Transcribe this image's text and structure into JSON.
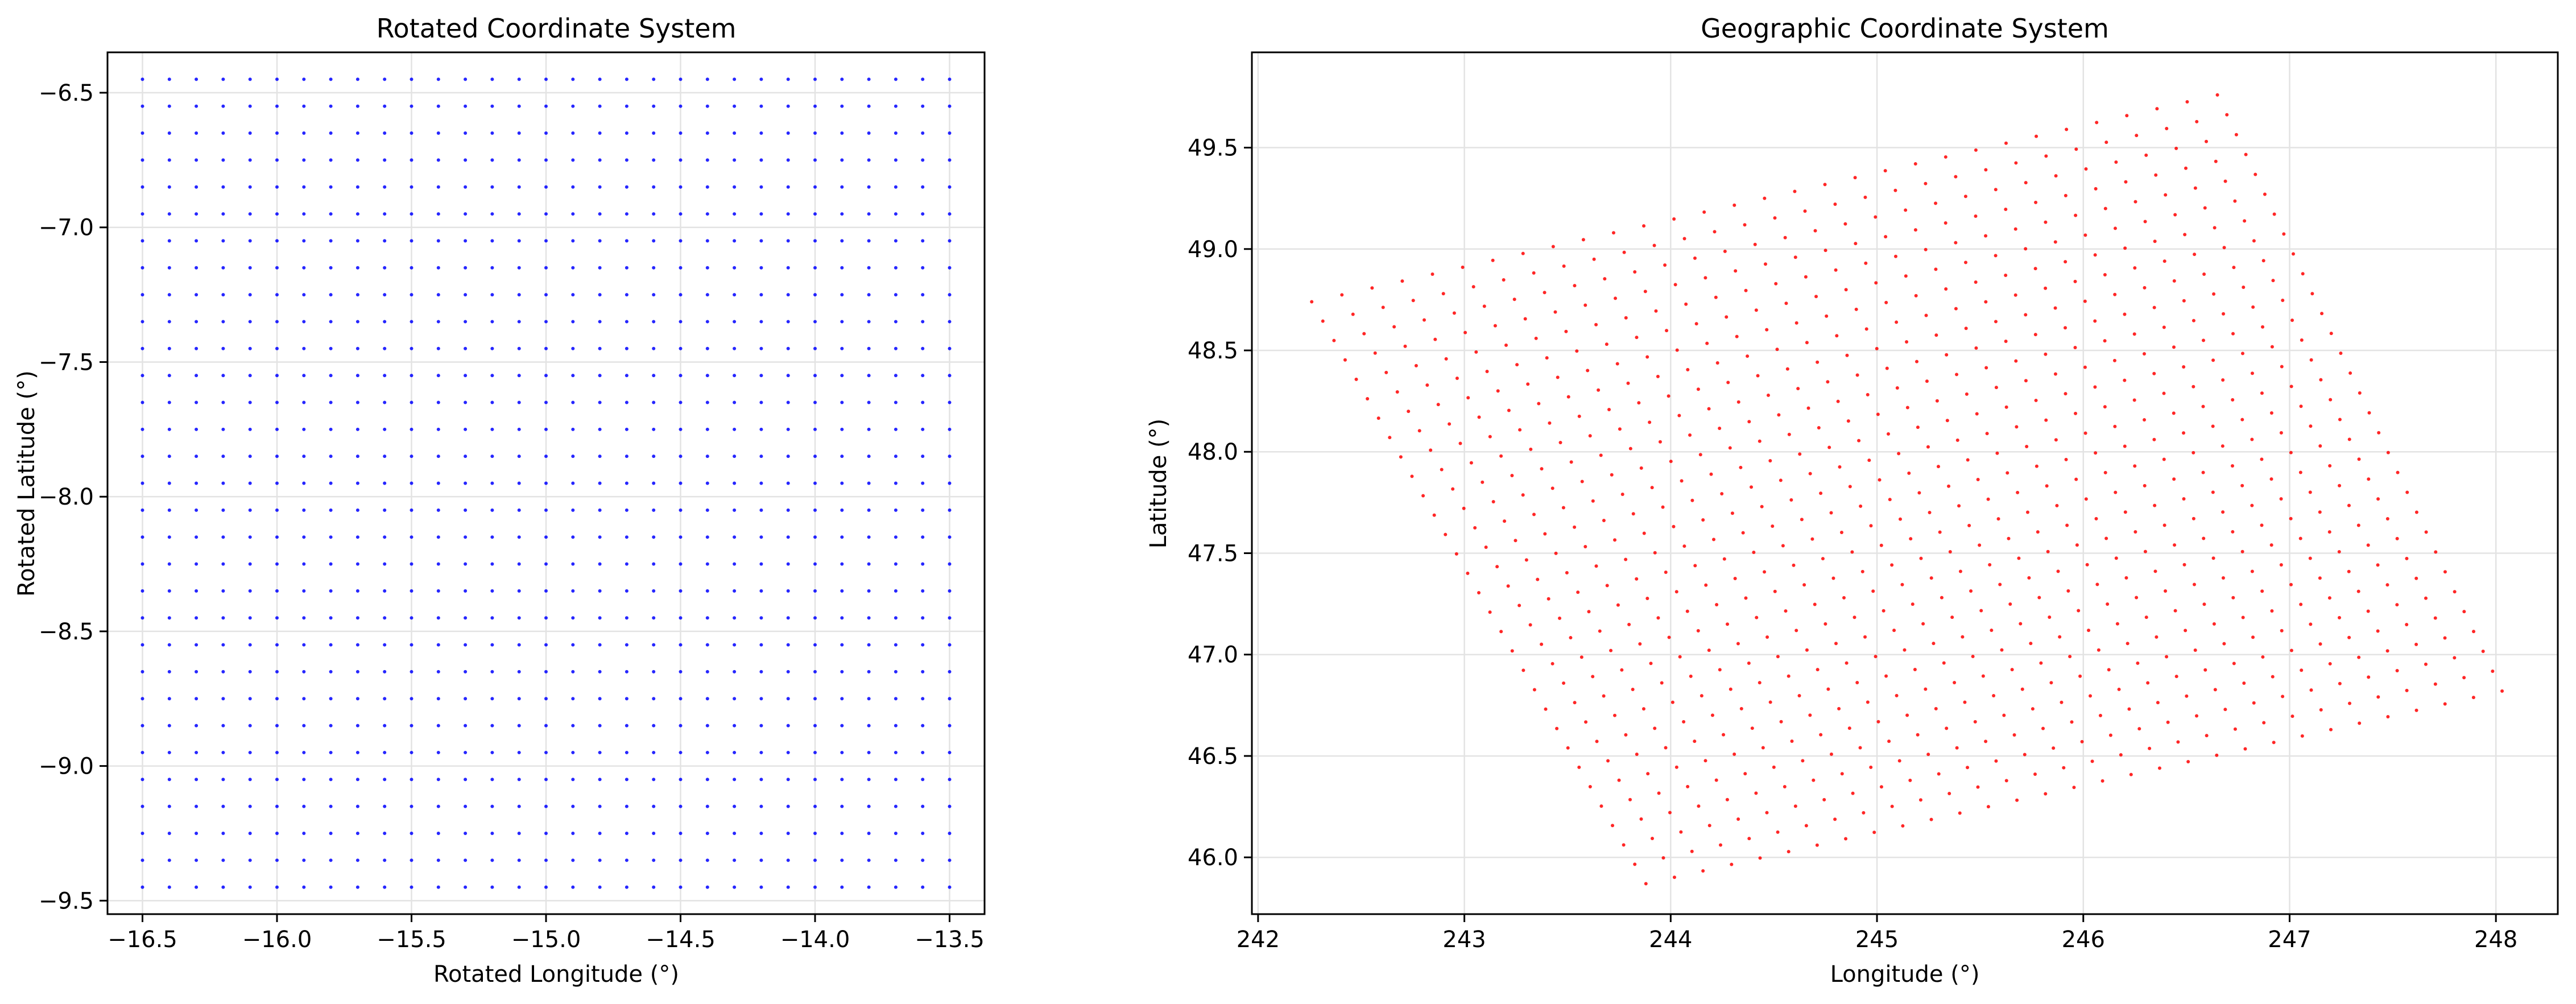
{
  "chart_data": [
    {
      "type": "scatter",
      "title": "Rotated Coordinate System",
      "xlabel": "Rotated Longitude (°)",
      "ylabel": "Rotated Latitude (°)",
      "xlim": [
        -16.63,
        -13.37
      ],
      "ylim": [
        -9.55,
        -6.35
      ],
      "xticks": [
        -16.5,
        -16.0,
        -15.5,
        -15.0,
        -14.5,
        -14.0,
        -13.5
      ],
      "xtick_labels": [
        "−16.5",
        "−16.0",
        "−15.5",
        "−15.0",
        "−14.5",
        "−14.0",
        "−13.5"
      ],
      "yticks": [
        -6.5,
        -7.0,
        -7.5,
        -8.0,
        -8.5,
        -9.0,
        -9.5
      ],
      "ytick_labels": [
        "−6.5",
        "−7.0",
        "−7.5",
        "−8.0",
        "−8.5",
        "−9.0",
        "−9.5"
      ],
      "grid": true,
      "color": "#0000ff",
      "marker_size": 3,
      "grid_spec": {
        "x_start": -16.5,
        "x_step": 0.1,
        "x_count": 31,
        "y_start": -9.45,
        "y_step": 0.1,
        "y_count": 31
      }
    },
    {
      "type": "scatter",
      "title": "Geographic Coordinate System",
      "xlabel": "Longitude (°)",
      "ylabel": "Latitude (°)",
      "xlim": [
        241.97,
        248.3
      ],
      "ylim": [
        45.72,
        49.97
      ],
      "xticks": [
        242,
        243,
        244,
        245,
        246,
        247,
        248
      ],
      "xtick_labels": [
        "242",
        "243",
        "244",
        "245",
        "246",
        "247",
        "248"
      ],
      "yticks": [
        46.0,
        46.5,
        47.0,
        47.5,
        48.0,
        48.5,
        49.0,
        49.5
      ],
      "ytick_labels": [
        "46.0",
        "46.5",
        "47.0",
        "47.5",
        "48.0",
        "48.5",
        "49.0",
        "49.5"
      ],
      "grid": true,
      "color": "#ff0000",
      "marker_size": 3,
      "corners": {
        "top_left": [
          242.26,
          48.74
        ],
        "top_right": [
          246.65,
          49.76
        ],
        "bottom_left": [
          243.88,
          45.87
        ],
        "bottom_right": [
          248.03,
          46.82
        ]
      },
      "point_rows": 31,
      "point_cols": 31
    }
  ]
}
